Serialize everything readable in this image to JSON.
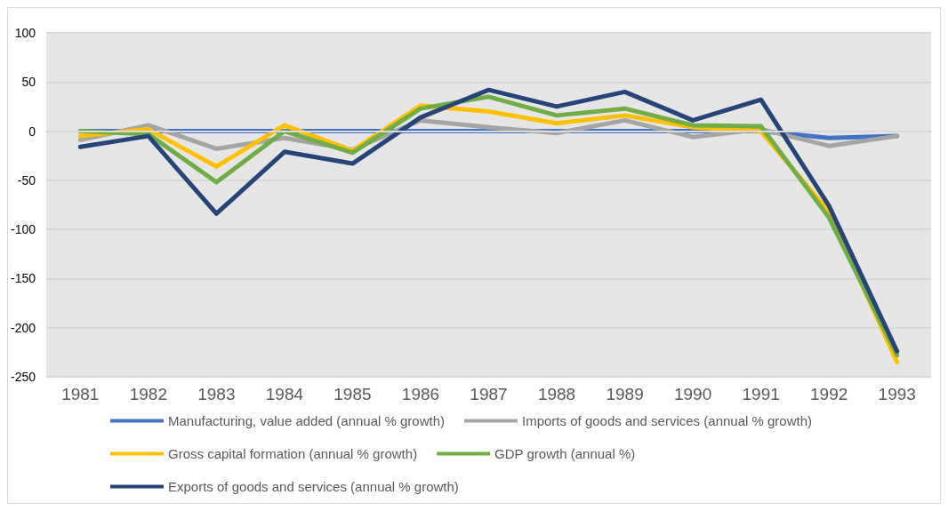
{
  "chart_data": {
    "type": "line",
    "categories": [
      "1981",
      "1982",
      "1983",
      "1984",
      "1985",
      "1986",
      "1987",
      "1988",
      "1989",
      "1990",
      "1991",
      "1992",
      "1993"
    ],
    "series": [
      {
        "name": "Manufacturing, value added (annual % growth)",
        "color": "#4472c4",
        "values": [
          0,
          0,
          0,
          0,
          0,
          0,
          0,
          0,
          0,
          0,
          0,
          -7,
          -5
        ]
      },
      {
        "name": "Imports of goods and services (annual % growth)",
        "color": "#a5a5a5",
        "values": [
          -9,
          6,
          -18,
          -7,
          -19,
          11,
          4,
          -2,
          11,
          -6,
          2,
          -15,
          -5
        ]
      },
      {
        "name": "Gross capital formation (annual % growth)",
        "color": "#ffc000",
        "values": [
          -5,
          2,
          -36,
          6,
          -20,
          26,
          20,
          8,
          16,
          4,
          0,
          -82,
          -235
        ]
      },
      {
        "name": "GDP growth (annual %)",
        "color": "#70ad47",
        "values": [
          0,
          -3,
          -52,
          0,
          -22,
          23,
          35,
          16,
          23,
          6,
          5,
          -88,
          -228
        ]
      },
      {
        "name": "Exports of goods and services (annual % growth)",
        "color": "#264478",
        "values": [
          -16,
          -5,
          -84,
          -21,
          -33,
          14,
          42,
          25,
          40,
          11,
          32,
          -76,
          -224
        ]
      }
    ],
    "ylim": [
      -250,
      100
    ],
    "yticks": [
      -250,
      -200,
      -150,
      -100,
      -50,
      0,
      50,
      100
    ],
    "grid": "y",
    "legend": "bottom",
    "marker": "none",
    "line_style": "solid"
  }
}
